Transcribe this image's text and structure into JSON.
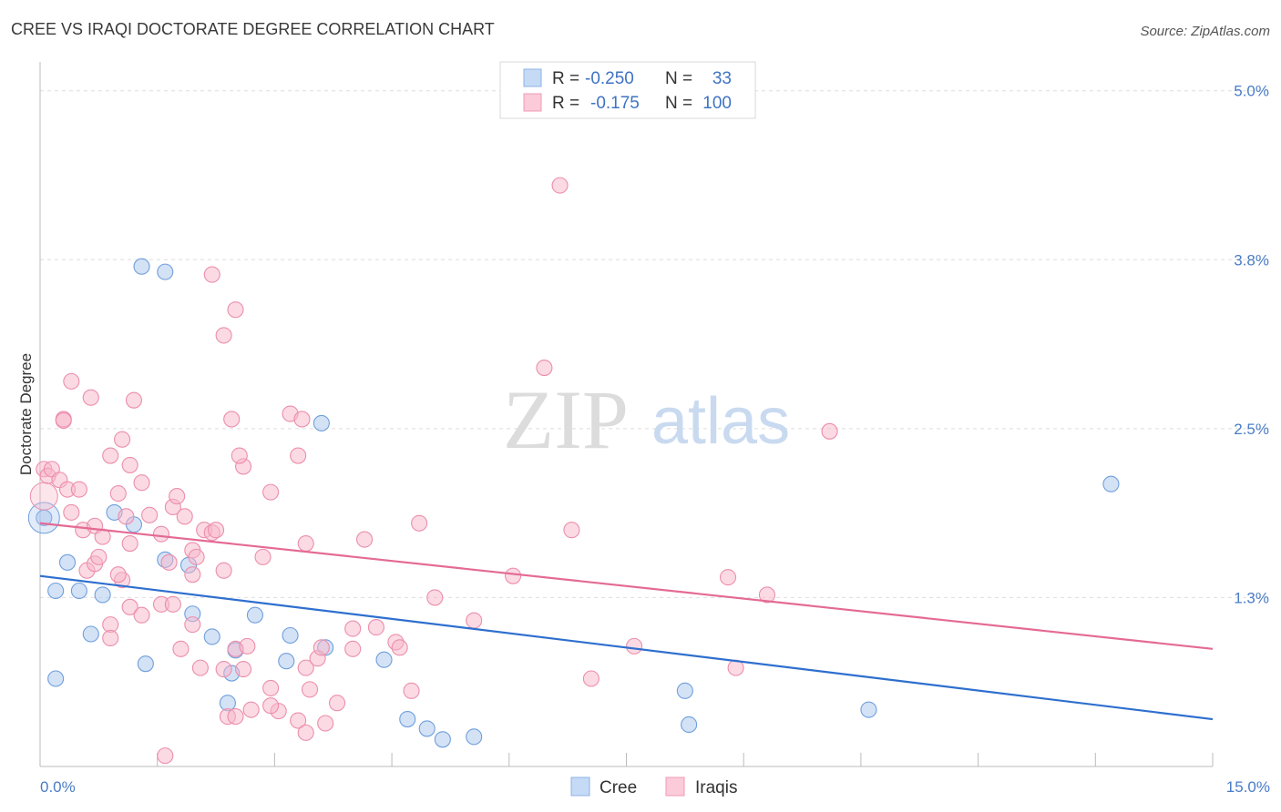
{
  "chart_data": {
    "type": "scatter",
    "title": "CREE VS IRAQI DOCTORATE DEGREE CORRELATION CHART",
    "source": "Source: ZipAtlas.com",
    "ylabel": "Doctorate Degree",
    "xlabel": "",
    "xlim": [
      0,
      15
    ],
    "ylim": [
      0,
      5.2
    ],
    "x_tick_labels": {
      "left": "0.0%",
      "right": "15.0%"
    },
    "y_ticks": [
      {
        "value": 1.25,
        "label": "1.3%"
      },
      {
        "value": 2.5,
        "label": "2.5%"
      },
      {
        "value": 3.75,
        "label": "3.8%"
      },
      {
        "value": 5.0,
        "label": "5.0%"
      }
    ],
    "watermark": {
      "zip": "ZIP",
      "atlas": "atlas"
    },
    "legend": {
      "rows": [
        {
          "r_label": "R =",
          "r_value": "-0.250",
          "n_label": "N =",
          "n_value": "33",
          "color": "#a9c6ee"
        },
        {
          "r_label": "R =",
          "r_value": "-0.175",
          "n_label": "N =",
          "n_value": "100",
          "color": "#f7b6c9"
        }
      ]
    },
    "series": [
      {
        "name": "Cree",
        "color": "#a9c6ee",
        "stroke": "#6f9fdc",
        "line_color": "#2e6fce",
        "trend": {
          "x0": 0,
          "y0": 1.41,
          "x1": 15,
          "y1": 0.35
        },
        "points": [
          [
            0.05,
            1.84
          ],
          [
            0.35,
            1.51
          ],
          [
            0.2,
            1.3
          ],
          [
            0.5,
            1.3
          ],
          [
            0.8,
            1.27
          ],
          [
            0.65,
            0.98
          ],
          [
            0.95,
            1.88
          ],
          [
            1.2,
            1.79
          ],
          [
            1.3,
            3.7
          ],
          [
            1.6,
            3.66
          ],
          [
            1.6,
            1.53
          ],
          [
            1.9,
            1.49
          ],
          [
            1.95,
            1.13
          ],
          [
            2.2,
            0.96
          ],
          [
            2.5,
            0.86
          ],
          [
            2.75,
            1.12
          ],
          [
            3.2,
            0.97
          ],
          [
            3.65,
            0.88
          ],
          [
            3.6,
            2.54
          ],
          [
            0.2,
            0.65
          ],
          [
            1.35,
            0.76
          ],
          [
            2.45,
            0.69
          ],
          [
            3.15,
            0.78
          ],
          [
            2.4,
            0.47
          ],
          [
            4.4,
            0.79
          ],
          [
            4.7,
            0.35
          ],
          [
            4.95,
            0.28
          ],
          [
            5.15,
            0.2
          ],
          [
            5.55,
            0.22
          ],
          [
            8.25,
            0.56
          ],
          [
            8.3,
            0.31
          ],
          [
            10.6,
            0.42
          ],
          [
            13.7,
            2.09
          ]
        ]
      },
      {
        "name": "Iraqis",
        "color": "#f7b6c9",
        "stroke": "#ec8eab",
        "line_color": "#e46a94",
        "trend": {
          "x0": 0,
          "y0": 1.8,
          "x1": 15,
          "y1": 0.87
        },
        "points": [
          [
            0.05,
            2.2
          ],
          [
            0.1,
            2.15
          ],
          [
            0.15,
            2.2
          ],
          [
            0.25,
            2.12
          ],
          [
            0.35,
            2.05
          ],
          [
            0.4,
            1.88
          ],
          [
            0.5,
            2.05
          ],
          [
            0.55,
            1.75
          ],
          [
            0.6,
            1.45
          ],
          [
            0.7,
            1.78
          ],
          [
            0.7,
            1.5
          ],
          [
            0.75,
            1.55
          ],
          [
            0.8,
            1.7
          ],
          [
            0.9,
            2.3
          ],
          [
            1.0,
            2.02
          ],
          [
            1.05,
            2.42
          ],
          [
            1.1,
            1.85
          ],
          [
            1.15,
            1.65
          ],
          [
            1.2,
            2.71
          ],
          [
            1.3,
            2.1
          ],
          [
            1.4,
            1.86
          ],
          [
            1.55,
            1.72
          ],
          [
            1.7,
            1.92
          ],
          [
            1.75,
            2.0
          ],
          [
            1.85,
            1.85
          ],
          [
            1.95,
            1.42
          ],
          [
            1.95,
            1.6
          ],
          [
            2.0,
            1.55
          ],
          [
            2.1,
            1.75
          ],
          [
            2.2,
            1.73
          ],
          [
            2.25,
            1.75
          ],
          [
            2.35,
            1.45
          ],
          [
            2.45,
            2.57
          ],
          [
            2.6,
            2.22
          ],
          [
            2.85,
            1.55
          ],
          [
            2.95,
            2.03
          ],
          [
            3.2,
            2.61
          ],
          [
            3.3,
            2.3
          ],
          [
            3.4,
            1.65
          ],
          [
            0.4,
            2.85
          ],
          [
            0.65,
            2.73
          ],
          [
            0.3,
            2.57
          ],
          [
            0.3,
            2.56
          ],
          [
            1.15,
            2.23
          ],
          [
            2.2,
            3.64
          ],
          [
            2.5,
            3.38
          ],
          [
            2.35,
            3.19
          ],
          [
            2.55,
            2.3
          ],
          [
            3.35,
            2.57
          ],
          [
            4.15,
            1.68
          ],
          [
            4.85,
            1.8
          ],
          [
            6.45,
            2.95
          ],
          [
            6.65,
            4.3
          ],
          [
            5.05,
            1.25
          ],
          [
            5.55,
            1.08
          ],
          [
            6.05,
            1.41
          ],
          [
            6.8,
            1.75
          ],
          [
            7.6,
            0.89
          ],
          [
            8.8,
            1.4
          ],
          [
            9.3,
            1.27
          ],
          [
            10.1,
            2.48
          ],
          [
            0.9,
            1.05
          ],
          [
            1.05,
            1.38
          ],
          [
            1.15,
            1.18
          ],
          [
            1.55,
            1.2
          ],
          [
            1.7,
            1.2
          ],
          [
            1.65,
            1.51
          ],
          [
            1.95,
            1.05
          ],
          [
            1.8,
            0.87
          ],
          [
            2.05,
            0.73
          ],
          [
            2.35,
            0.72
          ],
          [
            2.5,
            0.87
          ],
          [
            2.6,
            0.72
          ],
          [
            2.65,
            0.89
          ],
          [
            2.95,
            0.58
          ],
          [
            3.05,
            0.41
          ],
          [
            3.4,
            0.73
          ],
          [
            3.45,
            0.57
          ],
          [
            3.55,
            0.8
          ],
          [
            3.6,
            0.88
          ],
          [
            3.65,
            0.32
          ],
          [
            3.8,
            0.47
          ],
          [
            4.0,
            1.02
          ],
          [
            4.3,
            1.03
          ],
          [
            4.55,
            0.92
          ],
          [
            4.75,
            0.56
          ],
          [
            7.05,
            0.65
          ],
          [
            8.9,
            0.73
          ],
          [
            2.4,
            0.37
          ],
          [
            2.5,
            0.37
          ],
          [
            2.7,
            0.42
          ],
          [
            2.95,
            0.45
          ],
          [
            3.3,
            0.34
          ],
          [
            3.4,
            0.25
          ],
          [
            4.0,
            0.87
          ],
          [
            4.6,
            0.88
          ],
          [
            1.0,
            1.42
          ],
          [
            1.6,
            0.08
          ],
          [
            1.3,
            1.12
          ],
          [
            0.9,
            0.95
          ]
        ]
      }
    ]
  }
}
